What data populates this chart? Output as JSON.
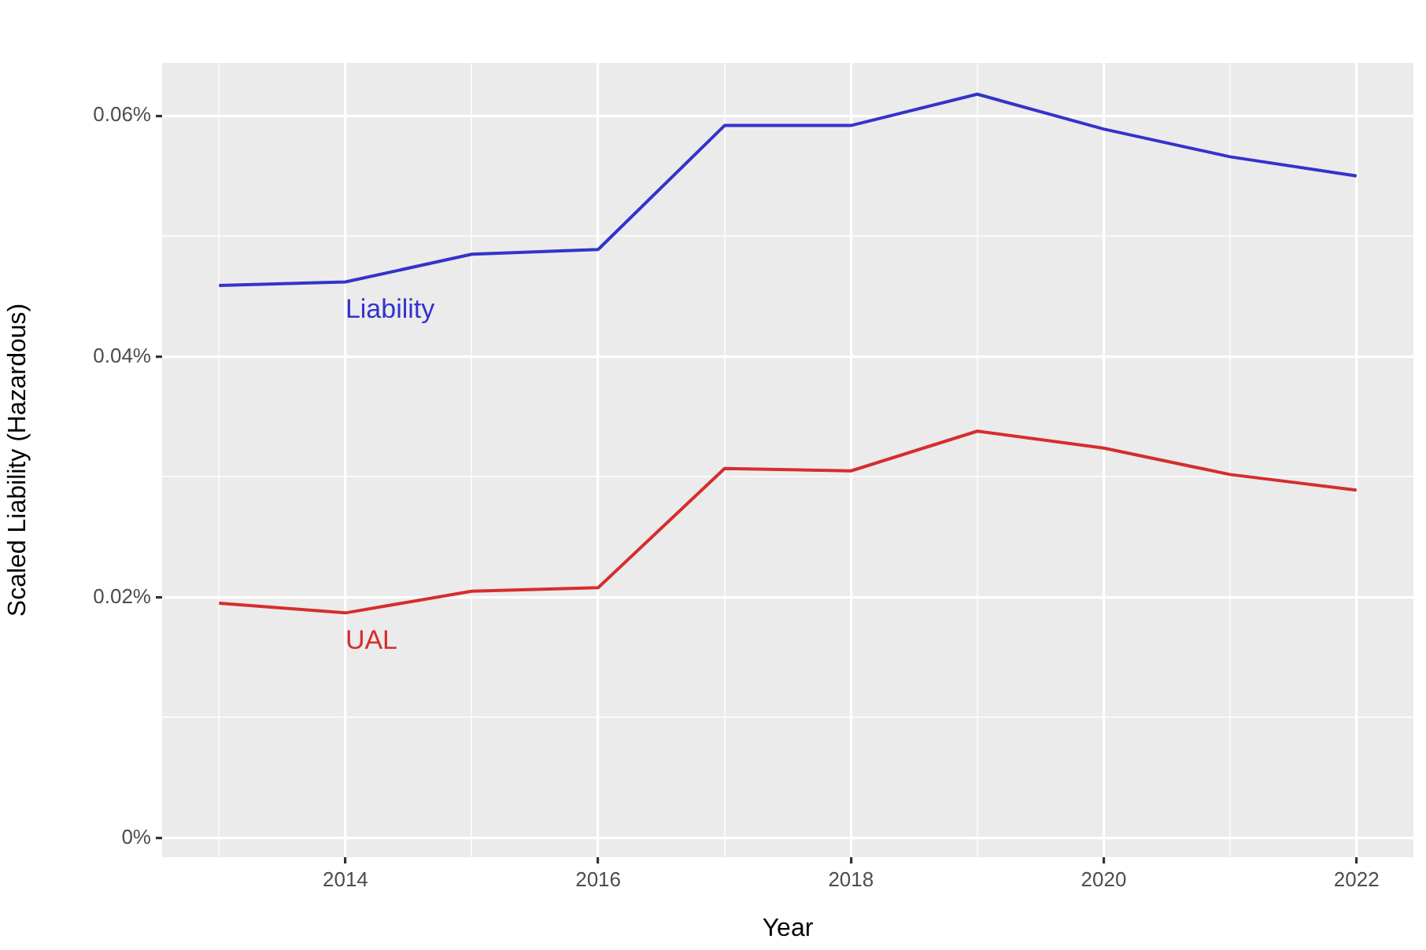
{
  "chart_data": {
    "type": "line",
    "xlabel": "Year",
    "ylabel": "Scaled Liability (Hazardous)",
    "x": [
      2013,
      2014,
      2015,
      2016,
      2017,
      2018,
      2019,
      2020,
      2021,
      2022
    ],
    "series": [
      {
        "name": "Liability",
        "color": "#3333cc",
        "values": [
          0.0459,
          0.0462,
          0.0485,
          0.0489,
          0.0592,
          0.0592,
          0.0618,
          0.0589,
          0.0566,
          0.055
        ]
      },
      {
        "name": "UAL",
        "color": "#d62d2d",
        "values": [
          0.0195,
          0.0187,
          0.0205,
          0.0208,
          0.0307,
          0.0305,
          0.0338,
          0.0324,
          0.0302,
          0.0289
        ]
      }
    ],
    "xlim": [
      2012.55,
      2022.45
    ],
    "ylim": [
      -0.0016,
      0.0644
    ],
    "xticks": [
      {
        "value": 2013,
        "label": null
      },
      2014,
      {
        "value": 2015,
        "label": null
      },
      2016,
      {
        "value": 2017,
        "label": null
      },
      2018,
      {
        "value": 2019,
        "label": null
      },
      2020,
      {
        "value": 2021,
        "label": null
      },
      2022
    ],
    "yticks": [
      {
        "value": 0,
        "label": "0%"
      },
      {
        "value": 0.01,
        "label": null
      },
      {
        "value": 0.02,
        "label": "0.02%"
      },
      {
        "value": 0.03,
        "label": null
      },
      {
        "value": 0.04,
        "label": "0.04%"
      },
      {
        "value": 0.05,
        "label": null
      },
      {
        "value": 0.06,
        "label": "0.06%"
      }
    ],
    "grid": true,
    "legend": false,
    "marker": "none",
    "line_style": "solid"
  }
}
